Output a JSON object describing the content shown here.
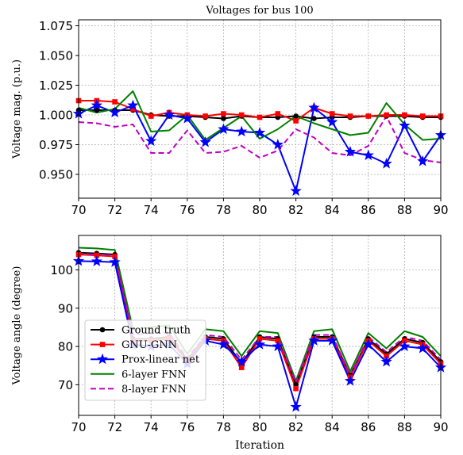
{
  "chart_data": [
    {
      "type": "line",
      "title": "Voltages for bus 100",
      "xlabel": "",
      "ylabel": "Voltage mag. (p.u.)",
      "xlim": [
        70,
        90
      ],
      "ylim": [
        0.93,
        1.08
      ],
      "x_ticks": [
        "70",
        "72",
        "74",
        "76",
        "78",
        "80",
        "82",
        "84",
        "86",
        "88",
        "90"
      ],
      "y_ticks": [
        "0.950",
        "0.975",
        "1.000",
        "1.025",
        "1.050",
        "1.075"
      ],
      "grid": true,
      "x": [
        70,
        71,
        72,
        73,
        74,
        75,
        76,
        77,
        78,
        79,
        80,
        81,
        82,
        83,
        84,
        85,
        86,
        87,
        88,
        89,
        90
      ],
      "series": [
        {
          "name": "Ground truth",
          "color": "#000000",
          "style": "solid",
          "marker": "circle",
          "values": [
            1.004,
            1.004,
            1.004,
            1.004,
            1.0,
            0.999,
            0.999,
            0.998,
            0.997,
            0.999,
            0.998,
            0.998,
            0.999,
            0.997,
            0.998,
            0.998,
            0.999,
            0.999,
            0.999,
            0.998,
            0.998
          ]
        },
        {
          "name": "GNU-GNN",
          "color": "#ff0000",
          "style": "solid",
          "marker": "square",
          "values": [
            1.012,
            1.012,
            1.011,
            1.005,
            0.999,
            1.002,
            1.0,
            0.999,
            1.001,
            1.0,
            0.998,
            1.001,
            0.995,
            1.006,
            1.001,
            0.999,
            0.999,
            1.0,
            1.0,
            0.999,
            0.999
          ]
        },
        {
          "name": "Prox-linear net",
          "color": "#0000ff",
          "style": "solid",
          "marker": "star",
          "values": [
            1.001,
            1.008,
            1.002,
            1.008,
            0.978,
            1.0,
            0.997,
            0.977,
            0.988,
            0.986,
            0.985,
            0.975,
            0.936,
            1.006,
            0.994,
            0.969,
            0.966,
            0.959,
            0.991,
            0.961,
            0.983
          ]
        },
        {
          "name": "6-layer FNN",
          "color": "#008000",
          "style": "solid",
          "marker": "none",
          "values": [
            1.006,
            1.002,
            1.005,
            1.02,
            0.986,
            0.987,
            1.0,
            0.979,
            0.989,
            0.999,
            0.98,
            0.988,
            0.999,
            0.993,
            0.988,
            0.983,
            0.985,
            1.01,
            0.992,
            0.979,
            0.98
          ]
        },
        {
          "name": "8-layer FNN",
          "color": "#c000c0",
          "style": "dashed",
          "marker": "none",
          "values": [
            0.994,
            0.993,
            0.99,
            0.992,
            0.968,
            0.968,
            0.987,
            0.968,
            0.969,
            0.974,
            0.964,
            0.97,
            0.988,
            0.981,
            0.968,
            0.966,
            0.974,
            0.999,
            0.968,
            0.962,
            0.96
          ]
        }
      ]
    },
    {
      "type": "line",
      "title": "",
      "xlabel": "Iteration",
      "ylabel": "Voltage angle (degree)",
      "xlim": [
        70,
        90
      ],
      "ylim": [
        62,
        109
      ],
      "x_ticks": [
        "70",
        "72",
        "74",
        "76",
        "78",
        "80",
        "82",
        "84",
        "86",
        "88",
        "90"
      ],
      "y_ticks": [
        "70",
        "80",
        "90",
        "100"
      ],
      "grid": true,
      "legend_position": "lower-left",
      "x": [
        70,
        71,
        72,
        73,
        74,
        75,
        76,
        77,
        78,
        79,
        80,
        81,
        82,
        83,
        84,
        85,
        86,
        87,
        88,
        89,
        90
      ],
      "series": [
        {
          "name": "Ground truth",
          "color": "#000000",
          "style": "solid",
          "marker": "circle",
          "values": [
            104.5,
            104.3,
            104.0,
            82.0,
            82.0,
            82.5,
            76.5,
            82.5,
            82.0,
            75.5,
            82.5,
            82.0,
            70.0,
            82.5,
            82.5,
            72.5,
            82.0,
            78.0,
            82.0,
            81.0,
            76.0
          ]
        },
        {
          "name": "GNU-GNN",
          "color": "#ff0000",
          "style": "solid",
          "marker": "square",
          "values": [
            104.0,
            103.8,
            103.5,
            81.5,
            81.5,
            82.0,
            76.0,
            82.0,
            81.5,
            74.5,
            82.0,
            81.5,
            69.0,
            82.0,
            82.0,
            72.0,
            81.5,
            77.5,
            81.5,
            80.5,
            75.5
          ]
        },
        {
          "name": "Prox-linear net",
          "color": "#0000ff",
          "style": "solid",
          "marker": "star",
          "values": [
            102.3,
            102.2,
            102.0,
            80.5,
            80.0,
            80.5,
            75.5,
            81.5,
            80.5,
            76.0,
            80.5,
            80.0,
            64.2,
            81.5,
            81.5,
            71.0,
            80.5,
            76.0,
            80.0,
            79.5,
            74.5
          ]
        },
        {
          "name": "6-layer FNN",
          "color": "#008000",
          "style": "solid",
          "marker": "none",
          "values": [
            105.8,
            105.6,
            105.2,
            84.5,
            85.0,
            85.5,
            78.0,
            84.5,
            84.0,
            77.5,
            84.0,
            83.5,
            71.0,
            84.0,
            84.5,
            73.5,
            83.5,
            79.5,
            84.0,
            82.5,
            77.5
          ]
        },
        {
          "name": "8-layer FNN",
          "color": "#c000c0",
          "style": "dashed",
          "marker": "none",
          "values": [
            104.2,
            104.0,
            103.8,
            83.0,
            83.5,
            83.5,
            77.0,
            83.0,
            82.5,
            76.5,
            82.5,
            82.5,
            70.5,
            83.0,
            83.0,
            72.5,
            82.5,
            78.5,
            82.5,
            81.5,
            76.5
          ]
        }
      ]
    }
  ]
}
